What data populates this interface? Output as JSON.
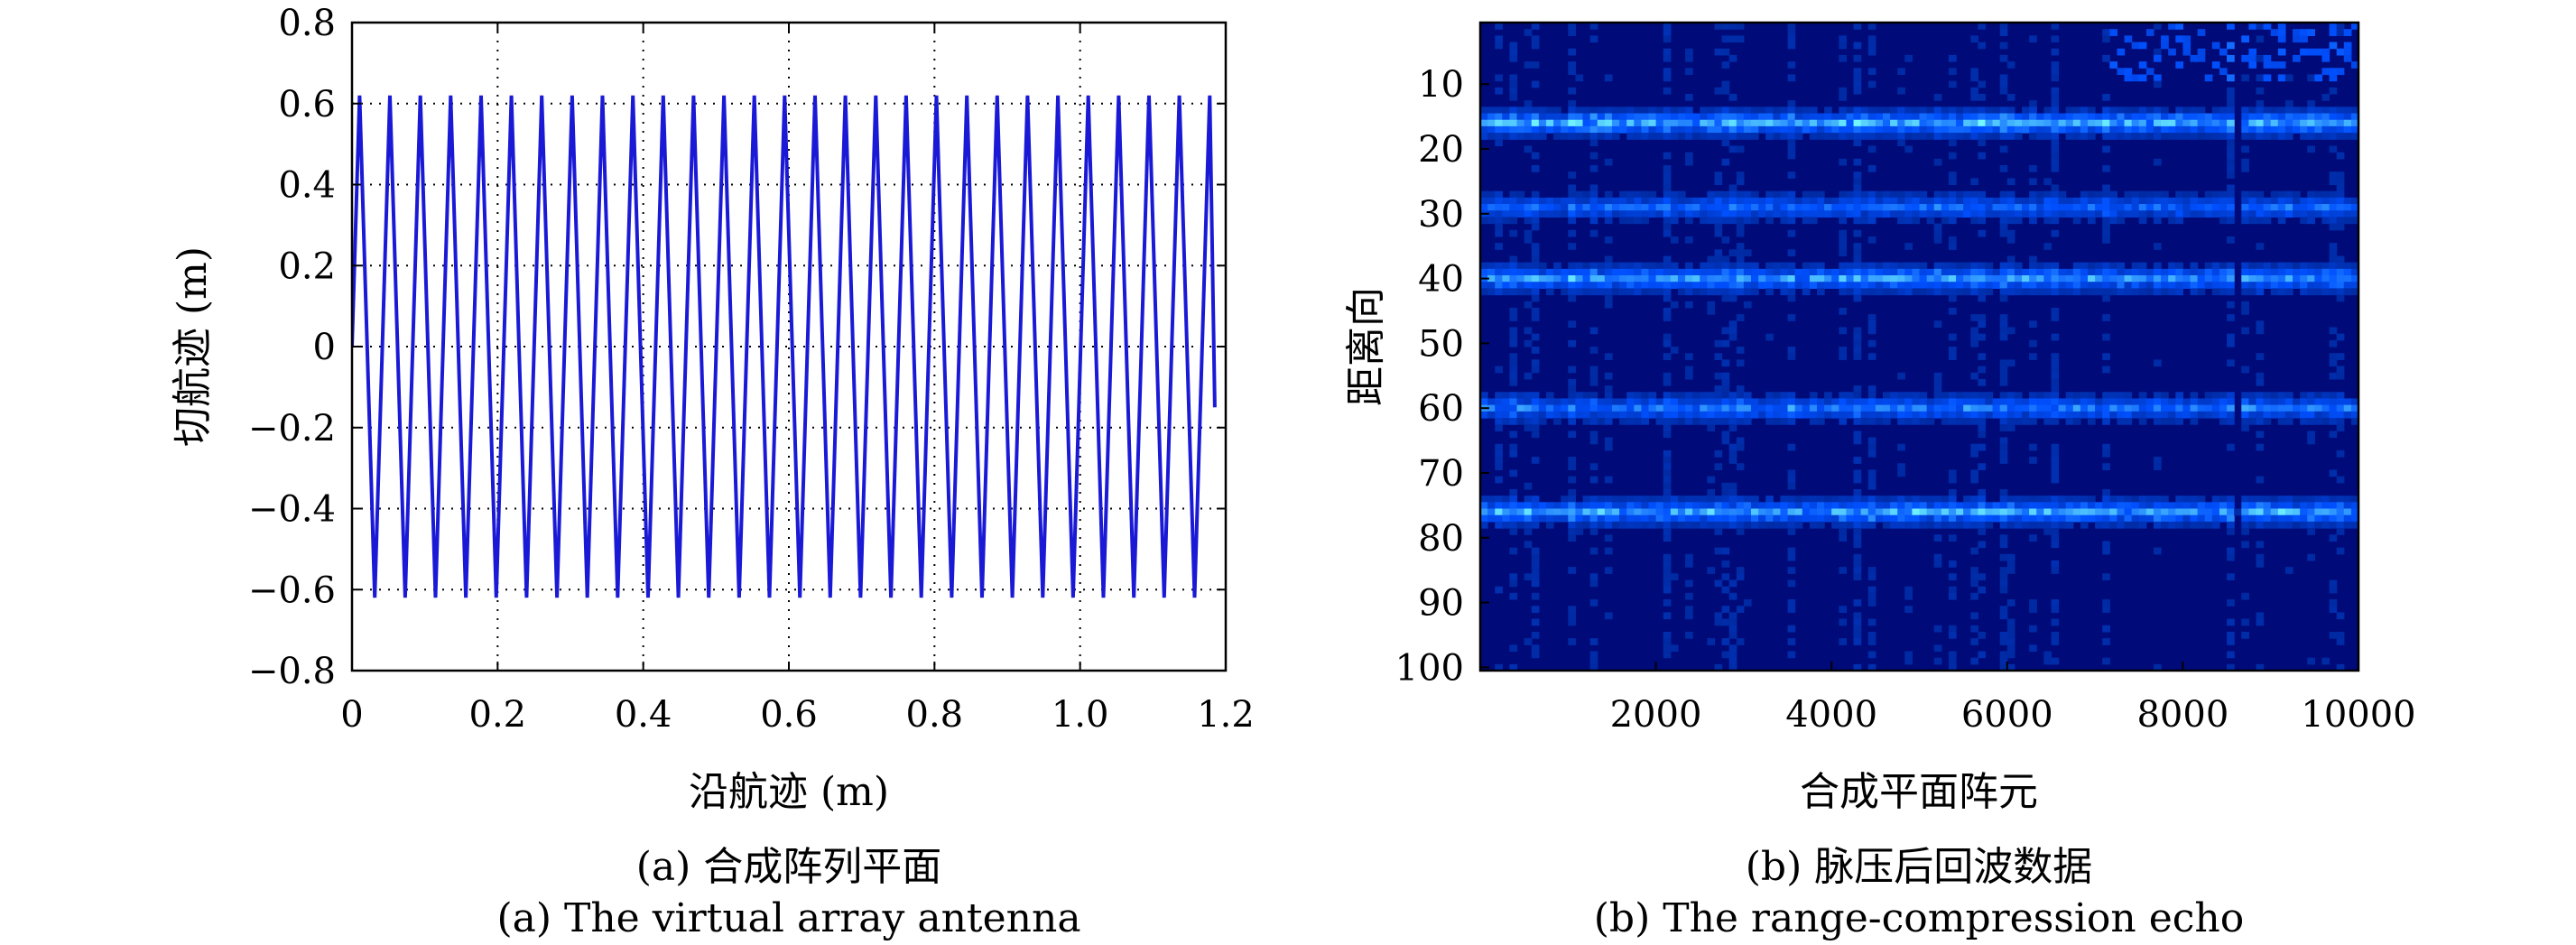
{
  "chart_data": [
    {
      "type": "line",
      "panel": "a",
      "xlabel": "沿航迹 (m)",
      "ylabel": "切航迹 (m)",
      "xlim": [
        0,
        1.2
      ],
      "ylim": [
        -0.8,
        0.8
      ],
      "xticks": [
        "0",
        "0.2",
        "0.4",
        "0.6",
        "0.8",
        "1.0",
        "1.2"
      ],
      "yticks": [
        "0.8",
        "0.6",
        "0.4",
        "0.2",
        "0",
        "−0.2",
        "−0.4",
        "−0.6",
        "−0.8"
      ],
      "grid": "dotted",
      "series": [
        {
          "color": "#1a1ad6",
          "description_of_shape": "triangular zig-zag between +0.62 and -0.62",
          "amplitude": 0.62,
          "period": 0.0417,
          "x_start": 0,
          "x_end": 1.185,
          "y_end": -0.15
        }
      ],
      "caption_cn": "(a) 合成阵列平面",
      "caption_en": "(a) The virtual array antenna"
    },
    {
      "type": "heatmap",
      "panel": "b",
      "xlabel": "合成平面阵元",
      "ylabel": "距离向",
      "xlim": [
        1,
        10000
      ],
      "ylim": [
        1,
        100
      ],
      "xticks": [
        "2000",
        "4000",
        "6000",
        "8000",
        "10000"
      ],
      "yticks": [
        "10",
        "20",
        "30",
        "40",
        "50",
        "60",
        "70",
        "80",
        "90",
        "100"
      ],
      "colormap": "dark-blue to cyan",
      "bright_bands_range": [
        16,
        29,
        40,
        60,
        76
      ],
      "dark_column_x": 8600,
      "caption_cn": "(b) 脉压后回波数据",
      "caption_en": "(b) The range-compression echo"
    }
  ]
}
